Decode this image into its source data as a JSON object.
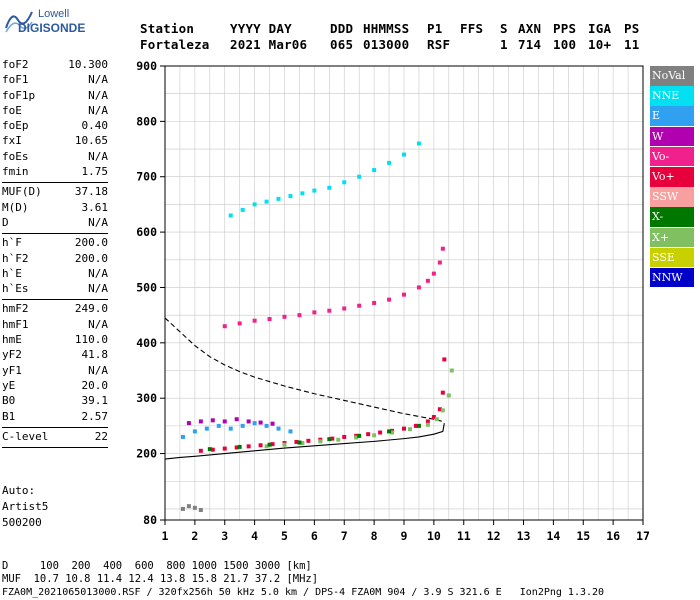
{
  "logo": {
    "line1": "Lowell",
    "line2": "DIGISONDE"
  },
  "header": {
    "row1": [
      "Station",
      "YYYY DAY",
      "DDD",
      "HHMMSS",
      "P1",
      "FFS",
      "S",
      "AXN",
      "PPS",
      "IGA",
      "PS"
    ],
    "row2": [
      "Fortaleza",
      "2021 Mar06",
      "065",
      "013000",
      "RSF",
      "",
      "1",
      "714",
      "100",
      "10+",
      "11"
    ]
  },
  "params": [
    {
      "name": "foF2",
      "value": "10.300"
    },
    {
      "name": "foF1",
      "value": "N/A"
    },
    {
      "name": "foF1p",
      "value": "N/A"
    },
    {
      "name": "foE",
      "value": "N/A"
    },
    {
      "name": "foEp",
      "value": "0.40"
    },
    {
      "name": "fxI",
      "value": "10.65"
    },
    {
      "name": "foEs",
      "value": "N/A"
    },
    {
      "name": "fmin",
      "value": "1.75"
    },
    {
      "sep": true
    },
    {
      "name": "MUF(D)",
      "value": "37.18"
    },
    {
      "name": "M(D)",
      "value": "3.61"
    },
    {
      "name": "D",
      "value": "N/A"
    },
    {
      "sep": true
    },
    {
      "name": "h`F",
      "value": "200.0"
    },
    {
      "name": "h`F2",
      "value": "200.0"
    },
    {
      "name": "h`E",
      "value": "N/A"
    },
    {
      "name": "h`Es",
      "value": "N/A"
    },
    {
      "sep": true
    },
    {
      "name": "hmF2",
      "value": "249.0"
    },
    {
      "name": "hmF1",
      "value": "N/A"
    },
    {
      "name": "hmE",
      "value": "110.0"
    },
    {
      "name": "yF2",
      "value": "41.8"
    },
    {
      "name": "yF1",
      "value": "N/A"
    },
    {
      "name": "yE",
      "value": "20.0"
    },
    {
      "name": "B0",
      "value": "39.1"
    },
    {
      "name": "B1",
      "value": "2.57"
    },
    {
      "sep": true
    },
    {
      "name": "C-level",
      "value": "22"
    },
    {
      "sep": true
    }
  ],
  "auto": [
    "Auto:",
    "Artist5",
    "500200"
  ],
  "legend": [
    {
      "label": "NoVal",
      "color": "#808080"
    },
    {
      "label": "NNE",
      "color": "#00e0f0"
    },
    {
      "label": "E",
      "color": "#30a0f0"
    },
    {
      "label": "W",
      "color": "#b000b0"
    },
    {
      "label": "Vo-",
      "color": "#f0208c"
    },
    {
      "label": "Vo+",
      "color": "#e8003c"
    },
    {
      "label": "SSW",
      "color": "#f8a0a0"
    },
    {
      "label": "X-",
      "color": "#007800"
    },
    {
      "label": "X+",
      "color": "#80c060"
    },
    {
      "label": "SSE",
      "color": "#c8d000"
    },
    {
      "label": "NNW",
      "color": "#0000c8"
    }
  ],
  "bottom": {
    "line1": "D     100  200  400  600  800 1000 1500 3000 [km]",
    "line2": "MUF  10.7 10.8 11.4 12.4 13.8 15.8 21.7 37.2 [MHz]",
    "line3": "FZA0M_2021065013000.RSF / 320fx256h 50 kHz 5.0 km / DPS-4 FZA0M 904 / 3.9 S 321.6 E   Ion2Png 1.3.20"
  },
  "chart_data": {
    "type": "scatter",
    "title": "",
    "xlabel": "",
    "ylabel": "",
    "xlim": [
      1,
      17
    ],
    "ylim": [
      80,
      900
    ],
    "x_ticks": [
      1,
      2,
      3,
      4,
      5,
      6,
      7,
      8,
      9,
      10,
      11,
      12,
      13,
      14,
      15,
      16,
      17
    ],
    "y_ticks": [
      80,
      200,
      300,
      400,
      500,
      600,
      700,
      800,
      900
    ],
    "grid": true,
    "series": [
      {
        "name": "Vo+",
        "color": "#e8003c",
        "x": [
          2.2,
          2.6,
          3.0,
          3.4,
          3.8,
          4.2,
          4.6,
          5.0,
          5.4,
          5.8,
          6.2,
          6.6,
          7.0,
          7.4,
          7.8,
          8.2,
          8.6,
          9.0,
          9.4,
          9.8,
          10.0,
          10.2,
          10.3,
          10.35
        ],
        "y": [
          205,
          207,
          209,
          211,
          213,
          215,
          217,
          219,
          221,
          223,
          225,
          227,
          230,
          232,
          235,
          238,
          241,
          245,
          250,
          258,
          266,
          280,
          310,
          370
        ]
      },
      {
        "name": "Vo-",
        "color": "#f0208c",
        "x": [
          3.0,
          3.5,
          4.0,
          4.5,
          5.0,
          5.5,
          6.0,
          6.5,
          7.0,
          7.5,
          8.0,
          8.5,
          9.0,
          9.5,
          9.8,
          10.0,
          10.2,
          10.3
        ],
        "y": [
          430,
          435,
          440,
          443,
          447,
          450,
          455,
          458,
          462,
          467,
          472,
          478,
          487,
          500,
          512,
          525,
          545,
          570
        ]
      },
      {
        "name": "NNE",
        "color": "#00e0f0",
        "x": [
          3.2,
          3.6,
          4.0,
          4.4,
          4.8,
          5.2,
          5.6,
          6.0,
          6.5,
          7.0,
          7.5,
          8.0,
          8.5,
          9.0,
          9.5
        ],
        "y": [
          630,
          640,
          650,
          655,
          660,
          665,
          670,
          675,
          680,
          690,
          700,
          712,
          725,
          740,
          760
        ]
      },
      {
        "name": "X+",
        "color": "#80c060",
        "x": [
          4.4,
          5.0,
          5.6,
          6.2,
          6.8,
          7.4,
          8.0,
          8.6,
          9.2,
          9.8,
          10.1,
          10.3,
          10.5,
          10.6
        ],
        "y": [
          213,
          216,
          219,
          222,
          225,
          229,
          233,
          238,
          244,
          252,
          262,
          278,
          305,
          350
        ]
      },
      {
        "name": "E",
        "color": "#30a0f0",
        "x": [
          1.6,
          2.0,
          2.4,
          2.8,
          3.2,
          3.6,
          4.0,
          4.4,
          4.8,
          5.2
        ],
        "y": [
          230,
          240,
          245,
          250,
          245,
          250,
          255,
          250,
          245,
          240
        ]
      },
      {
        "name": "W",
        "color": "#b000b0",
        "x": [
          1.8,
          2.2,
          2.6,
          3.0,
          3.4,
          3.8,
          4.2,
          4.6
        ],
        "y": [
          255,
          258,
          260,
          258,
          262,
          258,
          256,
          254
        ]
      },
      {
        "name": "X-",
        "color": "#007800",
        "x": [
          2.5,
          3.5,
          4.5,
          5.5,
          6.5,
          7.5,
          8.5,
          9.5
        ],
        "y": [
          208,
          212,
          216,
          220,
          226,
          232,
          240,
          250
        ]
      },
      {
        "name": "NoVal",
        "color": "#808080",
        "x": [
          1.6,
          1.8,
          2.0,
          2.2
        ],
        "y": [
          100,
          105,
          102,
          98
        ]
      }
    ],
    "curves": [
      {
        "style": "dashed",
        "x": [
          1.0,
          1.5,
          2.0,
          2.5,
          3.0,
          3.5,
          4.0,
          5.0,
          6.0,
          7.0,
          8.0,
          9.0,
          10.0,
          10.3
        ],
        "y": [
          445,
          420,
          395,
          375,
          360,
          348,
          338,
          322,
          308,
          296,
          284,
          272,
          262,
          258
        ]
      },
      {
        "style": "solid",
        "x": [
          1.0,
          1.5,
          2.0,
          3.0,
          4.0,
          5.0,
          6.0,
          7.0,
          8.0,
          9.0,
          9.5,
          10.0,
          10.3,
          10.35
        ],
        "y": [
          190,
          193,
          195,
          200,
          205,
          210,
          214,
          218,
          222,
          227,
          230,
          235,
          240,
          255
        ]
      }
    ]
  }
}
